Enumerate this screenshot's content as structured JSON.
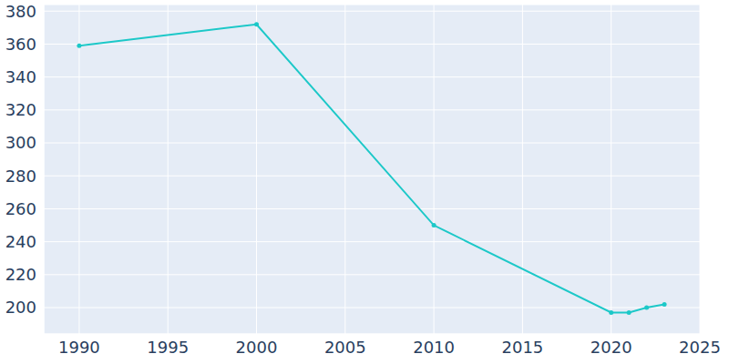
{
  "chart_data": {
    "type": "line",
    "x": [
      1990,
      2000,
      2010,
      2020,
      2021,
      2022,
      2023
    ],
    "values": [
      359,
      372,
      250,
      197,
      197,
      200,
      202
    ],
    "color": "#1cc8c8",
    "marker": "circle",
    "xlim": [
      1988,
      2025
    ],
    "xticks": [
      1990,
      1995,
      2000,
      2005,
      2010,
      2015,
      2020,
      2025
    ],
    "ylim": [
      184,
      384
    ],
    "yticks": [
      200,
      220,
      240,
      260,
      280,
      300,
      320,
      340,
      360,
      380
    ],
    "grid": true
  }
}
